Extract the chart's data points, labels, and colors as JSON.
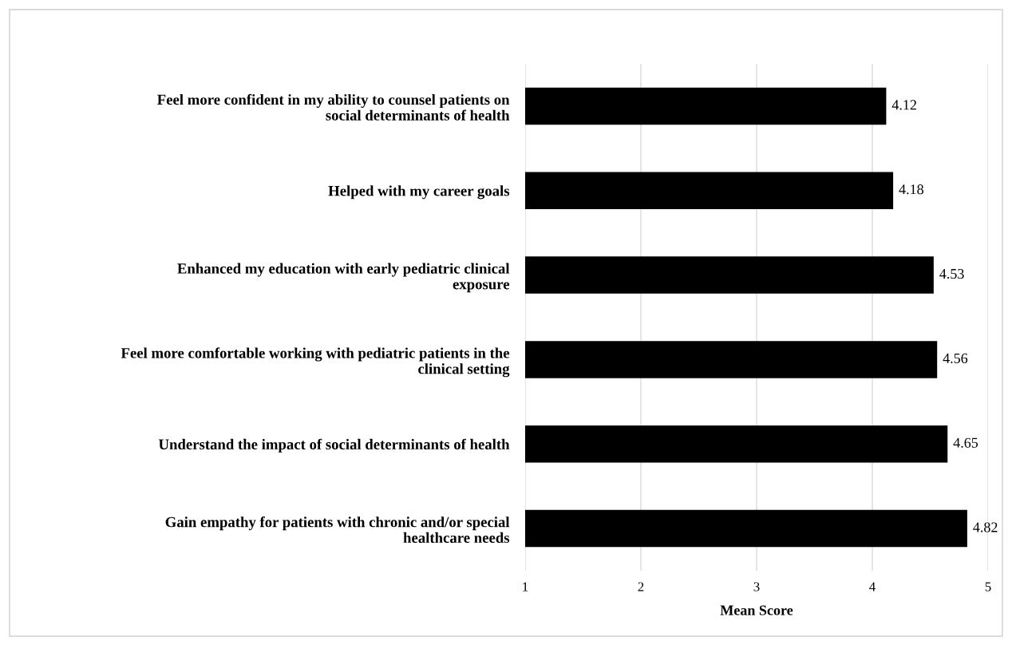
{
  "chart_data": {
    "type": "bar",
    "orientation": "horizontal",
    "xlabel": "Mean Score",
    "categories": [
      "Feel more confident in my ability to counsel patients on\nsocial determinants of health",
      "Helped with my career goals",
      "Enhanced my education with early pediatric clinical\nexposure",
      "Feel more comfortable working with pediatric patients in the\nclinical setting",
      "Understand the impact of social determinants of health",
      "Gain empathy for patients with chronic and/or special\nhealthcare needs"
    ],
    "values": [
      4.12,
      4.18,
      4.53,
      4.56,
      4.65,
      4.82
    ],
    "color": "#000000",
    "xlim": [
      1,
      5
    ],
    "xticks": [
      1,
      2,
      3,
      4,
      5
    ],
    "grid": "x",
    "data_labels": true
  }
}
